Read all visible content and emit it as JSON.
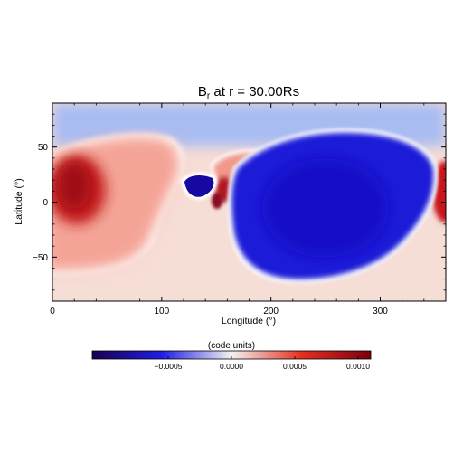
{
  "chart_data": {
    "type": "heatmap",
    "title_prefix": "B",
    "title_sub": "r",
    "title_suffix": " at r = 30.00Rs",
    "xlabel": "Longitude (°)",
    "ylabel": "Latitude (°)",
    "xlim": [
      0,
      360
    ],
    "ylim": [
      -90,
      90
    ],
    "x_ticks": [
      0,
      100,
      200,
      300
    ],
    "y_ticks": [
      -50,
      0,
      50
    ],
    "x_tick_labels": [
      "0",
      "100",
      "200",
      "300"
    ],
    "y_tick_labels": [
      "−50",
      "0",
      "50"
    ],
    "colormap": {
      "low": "#1a0050",
      "mid_low": "#1e1ee6",
      "zero": "#f2f2f2",
      "mid_high": "#e63020",
      "high": "#7a0010"
    },
    "colorbar": {
      "label": "(code units)",
      "range": [
        -0.0011,
        0.0011
      ],
      "ticks": [
        -0.0005,
        0.0,
        0.0005,
        0.001
      ],
      "tick_labels": [
        "−0.0005",
        "0.0000",
        "0.0005",
        "0.0010"
      ]
    },
    "features": [
      {
        "name": "positive-region-west",
        "lon": 20,
        "lat": 10,
        "value": 0.0009
      },
      {
        "name": "negative-region-main",
        "lon": 280,
        "lat": 0,
        "value": -0.0009
      },
      {
        "name": "negative-patch-small",
        "lon": 133,
        "lat": 15,
        "value": -0.0011
      },
      {
        "name": "positive-patch-small",
        "lon": 165,
        "lat": 15,
        "value": 0.0007
      },
      {
        "name": "positive-region-east-edge",
        "lon": 358,
        "lat": 5,
        "value": 0.0009
      }
    ]
  }
}
